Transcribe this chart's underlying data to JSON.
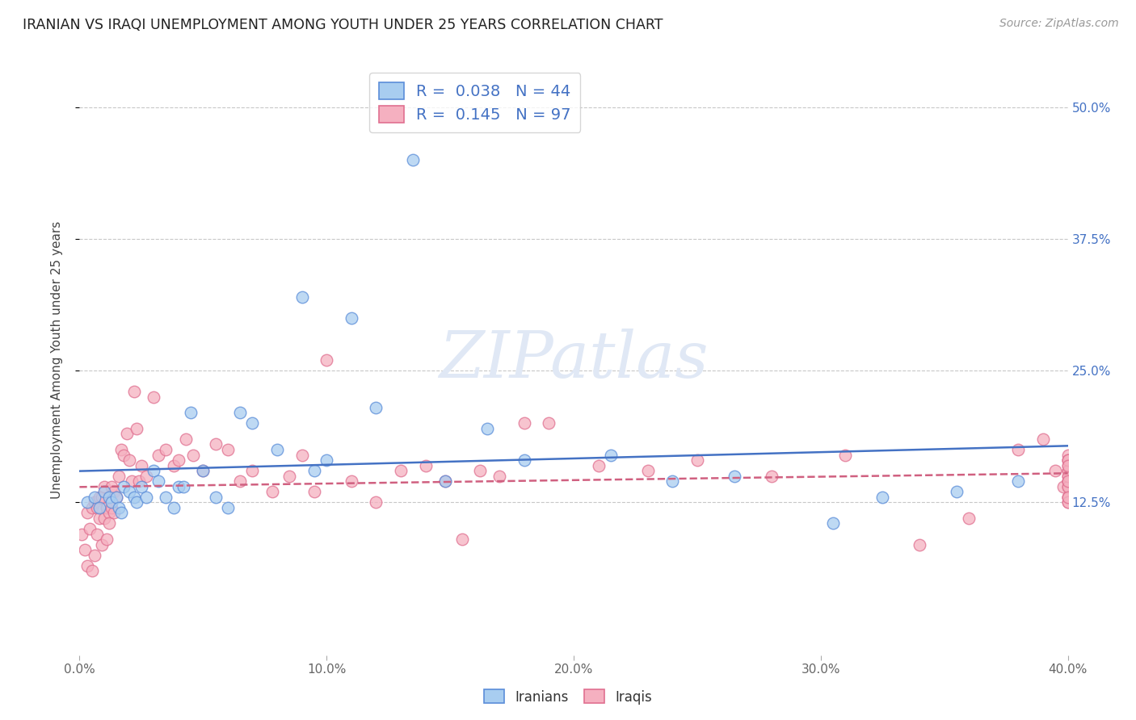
{
  "title": "IRANIAN VS IRAQI UNEMPLOYMENT AMONG YOUTH UNDER 25 YEARS CORRELATION CHART",
  "source": "Source: ZipAtlas.com",
  "ylabel": "Unemployment Among Youth under 25 years",
  "xlim": [
    0.0,
    0.4
  ],
  "ylim": [
    -0.02,
    0.54
  ],
  "xticks": [
    0.0,
    0.1,
    0.2,
    0.3,
    0.4
  ],
  "xtick_labels": [
    "0.0%",
    "10.0%",
    "20.0%",
    "30.0%",
    "40.0%"
  ],
  "ytick_labels_right": [
    "50.0%",
    "37.5%",
    "25.0%",
    "12.5%"
  ],
  "ytick_vals_right": [
    0.5,
    0.375,
    0.25,
    0.125
  ],
  "background_color": "#ffffff",
  "grid_color": "#c8c8c8",
  "title_color": "#222222",
  "source_color": "#999999",
  "iranian_fill": "#a8cdf0",
  "iraqi_fill": "#f5b0c0",
  "iranian_edge": "#5b8dd9",
  "iraqi_edge": "#e07090",
  "iranian_line_color": "#4472c4",
  "iraqi_line_color": "#d06080",
  "watermark_text": "ZIPatlas",
  "watermark_color": "#e0e8f5",
  "legend": {
    "iranian_R": "0.038",
    "iranian_N": "44",
    "iraqi_R": "0.145",
    "iraqi_N": "97"
  },
  "iranians_x": [
    0.003,
    0.006,
    0.008,
    0.01,
    0.012,
    0.013,
    0.015,
    0.016,
    0.017,
    0.018,
    0.02,
    0.022,
    0.023,
    0.025,
    0.027,
    0.03,
    0.032,
    0.035,
    0.038,
    0.04,
    0.042,
    0.045,
    0.05,
    0.055,
    0.06,
    0.065,
    0.07,
    0.08,
    0.09,
    0.095,
    0.1,
    0.11,
    0.12,
    0.135,
    0.148,
    0.165,
    0.18,
    0.215,
    0.24,
    0.265,
    0.305,
    0.325,
    0.355,
    0.38
  ],
  "iranians_y": [
    0.125,
    0.13,
    0.12,
    0.135,
    0.13,
    0.125,
    0.13,
    0.12,
    0.115,
    0.14,
    0.135,
    0.13,
    0.125,
    0.14,
    0.13,
    0.155,
    0.145,
    0.13,
    0.12,
    0.14,
    0.14,
    0.21,
    0.155,
    0.13,
    0.12,
    0.21,
    0.2,
    0.175,
    0.32,
    0.155,
    0.165,
    0.3,
    0.215,
    0.45,
    0.145,
    0.195,
    0.165,
    0.17,
    0.145,
    0.15,
    0.105,
    0.13,
    0.135,
    0.145
  ],
  "iraqis_x": [
    0.001,
    0.002,
    0.003,
    0.003,
    0.004,
    0.005,
    0.005,
    0.006,
    0.006,
    0.007,
    0.007,
    0.008,
    0.008,
    0.009,
    0.009,
    0.01,
    0.01,
    0.011,
    0.011,
    0.012,
    0.012,
    0.013,
    0.013,
    0.014,
    0.014,
    0.015,
    0.016,
    0.017,
    0.018,
    0.019,
    0.02,
    0.021,
    0.022,
    0.023,
    0.024,
    0.025,
    0.027,
    0.03,
    0.032,
    0.035,
    0.038,
    0.04,
    0.043,
    0.046,
    0.05,
    0.055,
    0.06,
    0.065,
    0.07,
    0.078,
    0.085,
    0.09,
    0.095,
    0.1,
    0.11,
    0.12,
    0.13,
    0.14,
    0.148,
    0.155,
    0.162,
    0.17,
    0.18,
    0.19,
    0.21,
    0.23,
    0.25,
    0.28,
    0.31,
    0.34,
    0.36,
    0.38,
    0.39,
    0.395,
    0.398,
    0.4,
    0.4,
    0.4,
    0.4,
    0.4,
    0.4,
    0.4,
    0.4,
    0.4,
    0.4,
    0.4,
    0.4,
    0.4,
    0.4,
    0.4,
    0.4,
    0.4,
    0.4,
    0.4,
    0.4,
    0.4,
    0.4
  ],
  "iraqis_y": [
    0.095,
    0.08,
    0.115,
    0.065,
    0.1,
    0.12,
    0.06,
    0.125,
    0.075,
    0.12,
    0.095,
    0.13,
    0.11,
    0.13,
    0.085,
    0.14,
    0.11,
    0.12,
    0.09,
    0.115,
    0.105,
    0.14,
    0.12,
    0.135,
    0.115,
    0.13,
    0.15,
    0.175,
    0.17,
    0.19,
    0.165,
    0.145,
    0.23,
    0.195,
    0.145,
    0.16,
    0.15,
    0.225,
    0.17,
    0.175,
    0.16,
    0.165,
    0.185,
    0.17,
    0.155,
    0.18,
    0.175,
    0.145,
    0.155,
    0.135,
    0.15,
    0.17,
    0.135,
    0.26,
    0.145,
    0.125,
    0.155,
    0.16,
    0.145,
    0.09,
    0.155,
    0.15,
    0.2,
    0.2,
    0.16,
    0.155,
    0.165,
    0.15,
    0.17,
    0.085,
    0.11,
    0.175,
    0.185,
    0.155,
    0.14,
    0.155,
    0.165,
    0.145,
    0.17,
    0.13,
    0.145,
    0.155,
    0.165,
    0.125,
    0.14,
    0.15,
    0.16,
    0.13,
    0.145,
    0.155,
    0.165,
    0.125,
    0.14,
    0.15,
    0.16,
    0.13,
    0.145
  ]
}
